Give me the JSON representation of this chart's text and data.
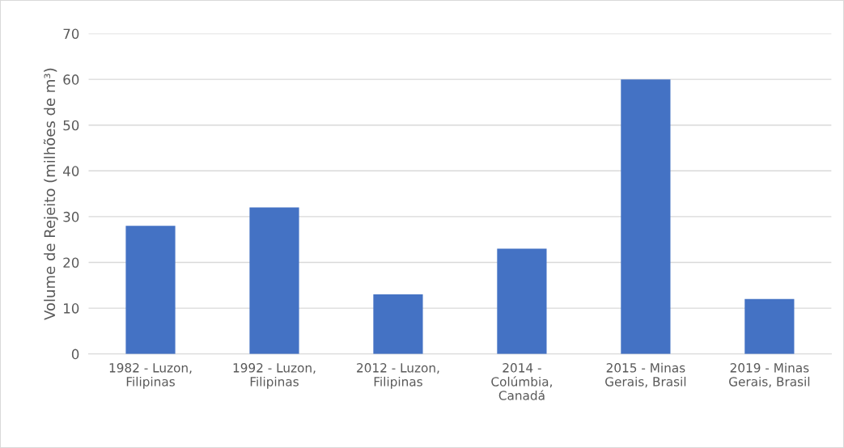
{
  "chart_data": {
    "type": "bar",
    "categories": [
      "1982 - Luzon,\nFilipinas",
      "1992 - Luzon,\nFilipinas",
      "2012 - Luzon,\nFilipinas",
      "2014 -\nColúmbia,\nCanadá",
      "2015 - Minas\nGerais, Brasil",
      "2019 - Minas\nGerais, Brasil"
    ],
    "values": [
      28,
      32,
      13,
      23,
      60,
      12
    ],
    "color": "#4472c4",
    "ylabel": "Volume de Rejeito (milhões de m³)",
    "ylim": [
      0,
      70
    ],
    "yticks": [
      0,
      10,
      20,
      30,
      40,
      50,
      60,
      70
    ],
    "grid": "y"
  }
}
